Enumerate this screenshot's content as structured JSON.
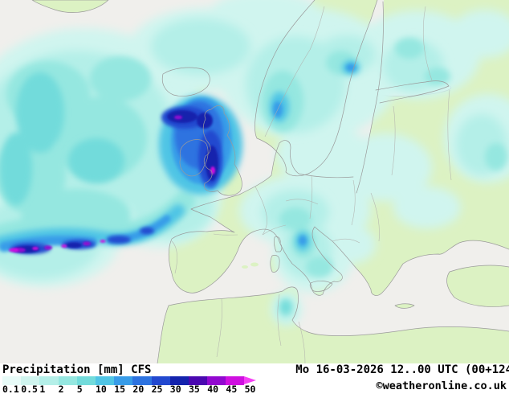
{
  "legend": {
    "title": "Precipitation [mm] CFS",
    "parameter": "Precipitation",
    "unit": "[mm]",
    "model": "CFS",
    "ticks": [
      "0.1",
      "0.5",
      "1",
      "2",
      "5",
      "10",
      "15",
      "20",
      "25",
      "30",
      "35",
      "40",
      "45",
      "50"
    ],
    "segment_colors": [
      "#e8fbf8",
      "#d0f5ef",
      "#b4efe8",
      "#95e7e0",
      "#72dbdb",
      "#50c5e5",
      "#389ce8",
      "#2d73e0",
      "#2248cf",
      "#1423ad",
      "#4a08b0",
      "#9208d0",
      "#cf10e0"
    ],
    "arrow_color": "#f540f5"
  },
  "footer": {
    "datetime": "Mo 16-03-2026 12..00 UTC (00+124",
    "copyright": "©weatheronline.co.uk"
  },
  "map": {
    "sea_color": "#f0efec",
    "land_color": "#dcf2c3",
    "coast_color": "#9a9a9a",
    "border_color": "#b0afac"
  }
}
